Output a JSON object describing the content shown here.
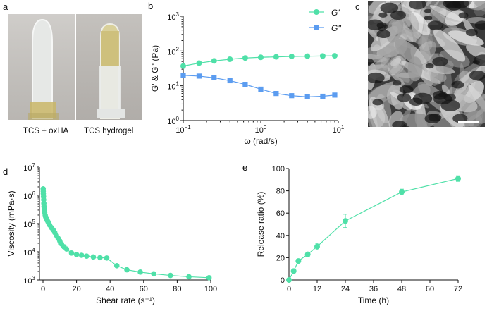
{
  "panel_labels": {
    "a": "a",
    "b": "b",
    "c": "c",
    "d": "d",
    "e": "e"
  },
  "photos": {
    "left_caption": "TCS + oxHA",
    "right_caption": "TCS hydrogel",
    "sem_image": "sem-micrograph-porous-network"
  },
  "colors": {
    "g_prime": "#4fe0a8",
    "g_double_prime": "#5b9cf0",
    "viscosity": "#4fe0a8",
    "release": "#4fe0a8"
  },
  "chart_data": [
    {
      "id": "b",
      "type": "scatter",
      "xscale": "log",
      "yscale": "log",
      "xlim": [
        0.1,
        10
      ],
      "ylim": [
        1,
        1000
      ],
      "xlabel": "ω (rad/s)",
      "ylabel": "G' & G'' (Pa)",
      "xticks": [
        {
          "v": 0.1,
          "b": "10",
          "e": "−1"
        },
        {
          "v": 1,
          "b": "10",
          "e": "0"
        },
        {
          "v": 10,
          "b": "10",
          "e": "1"
        }
      ],
      "yticks": [
        {
          "v": 1,
          "b": "10",
          "e": "0"
        },
        {
          "v": 10,
          "b": "10",
          "e": "1"
        },
        {
          "v": 100,
          "b": "10",
          "e": "2"
        },
        {
          "v": 1000,
          "b": "10",
          "e": "3"
        }
      ],
      "legend_position": "top-right",
      "series": [
        {
          "name": "G'",
          "marker": "circle",
          "x": [
            0.1,
            0.16,
            0.25,
            0.4,
            0.63,
            1.0,
            1.58,
            2.5,
            4.0,
            6.3,
            9.0
          ],
          "y": [
            37,
            45,
            52,
            58,
            63,
            66,
            68,
            70,
            71,
            72,
            73
          ]
        },
        {
          "name": "G''",
          "marker": "square",
          "x": [
            0.1,
            0.16,
            0.25,
            0.4,
            0.63,
            1.0,
            1.58,
            2.5,
            4.0,
            6.3,
            9.0
          ],
          "y": [
            20,
            19,
            17,
            14,
            11,
            8,
            6,
            5.2,
            4.8,
            5.0,
            5.4
          ]
        }
      ]
    },
    {
      "id": "d",
      "type": "scatter",
      "xscale": "linear",
      "yscale": "log",
      "xlim": [
        0,
        100
      ],
      "ylim": [
        1000,
        10000000
      ],
      "xlabel": "Shear rate (s⁻¹)",
      "ylabel": "Viscosity (mPa·s)",
      "xticks": [
        0,
        20,
        40,
        60,
        80,
        100
      ],
      "yticks": [
        {
          "v": 1000,
          "b": "10",
          "e": "3"
        },
        {
          "v": 10000,
          "b": "10",
          "e": "4"
        },
        {
          "v": 100000,
          "b": "10",
          "e": "5"
        },
        {
          "v": 1000000,
          "b": "10",
          "e": "6"
        },
        {
          "v": 10000000,
          "b": "10",
          "e": "7"
        }
      ],
      "series": [
        {
          "name": "",
          "marker": "circle",
          "x": [
            0.1,
            0.15,
            0.2,
            0.3,
            0.4,
            0.5,
            0.6,
            0.8,
            1.0,
            1.3,
            1.6,
            2.0,
            2.5,
            3.0,
            3.5,
            4.0,
            5.0,
            6.0,
            7.0,
            8.0,
            9.0,
            10.0,
            11.0,
            12.5,
            14.0,
            17.0,
            20.0,
            23.0,
            26.0,
            30.0,
            34.0,
            38.0,
            44.0,
            50.0,
            58.0,
            66.0,
            76.0,
            87.0,
            99.0
          ],
          "y": [
            1700000,
            1400000,
            1150000,
            900000,
            700000,
            520000,
            400000,
            320000,
            250000,
            200000,
            170000,
            150000,
            130000,
            115000,
            100000,
            88000,
            72000,
            60000,
            48000,
            38000,
            30000,
            24000,
            19000,
            15000,
            12500,
            9000,
            8000,
            7500,
            7000,
            6500,
            6200,
            6000,
            3200,
            2300,
            1900,
            1650,
            1450,
            1300,
            1200
          ]
        }
      ]
    },
    {
      "id": "e",
      "type": "line",
      "xlim": [
        0,
        72
      ],
      "ylim": [
        0,
        100
      ],
      "xlabel": "Time (h)",
      "ylabel": "Release ratio (%)",
      "xticks": [
        0,
        12,
        24,
        36,
        48,
        60,
        72
      ],
      "yticks": [
        0,
        20,
        40,
        60,
        80,
        100
      ],
      "series": [
        {
          "name": "",
          "marker": "circle",
          "x": [
            0,
            2,
            4,
            8,
            12,
            24,
            48,
            72
          ],
          "y": [
            0,
            8,
            17,
            23,
            30,
            53,
            79,
            91
          ],
          "err": [
            0,
            1,
            1.5,
            2,
            3,
            6,
            2.5,
            2.5
          ]
        }
      ]
    }
  ]
}
